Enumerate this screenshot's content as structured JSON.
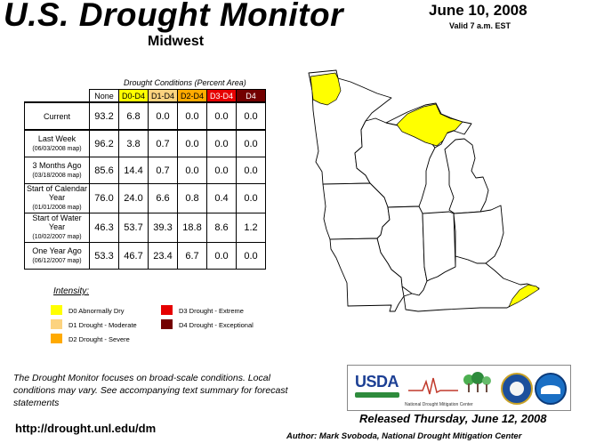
{
  "header": {
    "title": "U.S. Drought Monitor",
    "region": "Midwest",
    "date": "June 10, 2008",
    "valid": "Valid 7 a.m. EST"
  },
  "table": {
    "caption": "Drought Conditions (Percent Area)",
    "columns": [
      "None",
      "D0-D4",
      "D1-D4",
      "D2-D4",
      "D3-D4",
      "D4"
    ],
    "column_colors": [
      "#ffffff",
      "#ffff00",
      "#fcd37f",
      "#ffaa00",
      "#e60000",
      "#730000"
    ],
    "rows": [
      {
        "label": "Current",
        "sub": "",
        "values": [
          "93.2",
          "6.8",
          "0.0",
          "0.0",
          "0.0",
          "0.0"
        ]
      },
      {
        "label": "Last Week",
        "sub": "(06/03/2008 map)",
        "values": [
          "96.2",
          "3.8",
          "0.7",
          "0.0",
          "0.0",
          "0.0"
        ]
      },
      {
        "label": "3 Months Ago",
        "sub": "(03/18/2008 map)",
        "values": [
          "85.6",
          "14.4",
          "0.7",
          "0.0",
          "0.0",
          "0.0"
        ]
      },
      {
        "label": "Start of Calendar Year",
        "sub": "(01/01/2008 map)",
        "values": [
          "76.0",
          "24.0",
          "6.6",
          "0.8",
          "0.4",
          "0.0"
        ]
      },
      {
        "label": "Start of Water Year",
        "sub": "(10/02/2007 map)",
        "values": [
          "46.3",
          "53.7",
          "39.3",
          "18.8",
          "8.6",
          "1.2"
        ]
      },
      {
        "label": "One Year Ago",
        "sub": "(06/12/2007 map)",
        "values": [
          "53.3",
          "46.7",
          "23.4",
          "6.7",
          "0.0",
          "0.0"
        ]
      }
    ]
  },
  "legend": {
    "title": "Intensity:",
    "items": [
      {
        "label": "D0 Abnormally Dry",
        "color": "#ffff00"
      },
      {
        "label": "D1 Drought - Moderate",
        "color": "#fcd37f"
      },
      {
        "label": "D2 Drought - Severe",
        "color": "#ffaa00"
      },
      {
        "label": "D3 Drought - Extreme",
        "color": "#e60000"
      },
      {
        "label": "D4 Drought - Exceptional",
        "color": "#730000"
      }
    ]
  },
  "footer": {
    "note": "The Drought Monitor focuses on broad-scale conditions. Local conditions may vary. See accompanying text summary for forecast statements",
    "url": "http://drought.unl.edu/dm",
    "released": "Released Thursday, June 12, 2008",
    "author": "Author: Mark Svoboda, National Drought Mitigation Center"
  },
  "logos": {
    "usda": "USDA",
    "ndmc": "National Drought Mitigation Center"
  },
  "map": {
    "state_fill": "#ffffff",
    "d0_fill": "#ffff00"
  }
}
